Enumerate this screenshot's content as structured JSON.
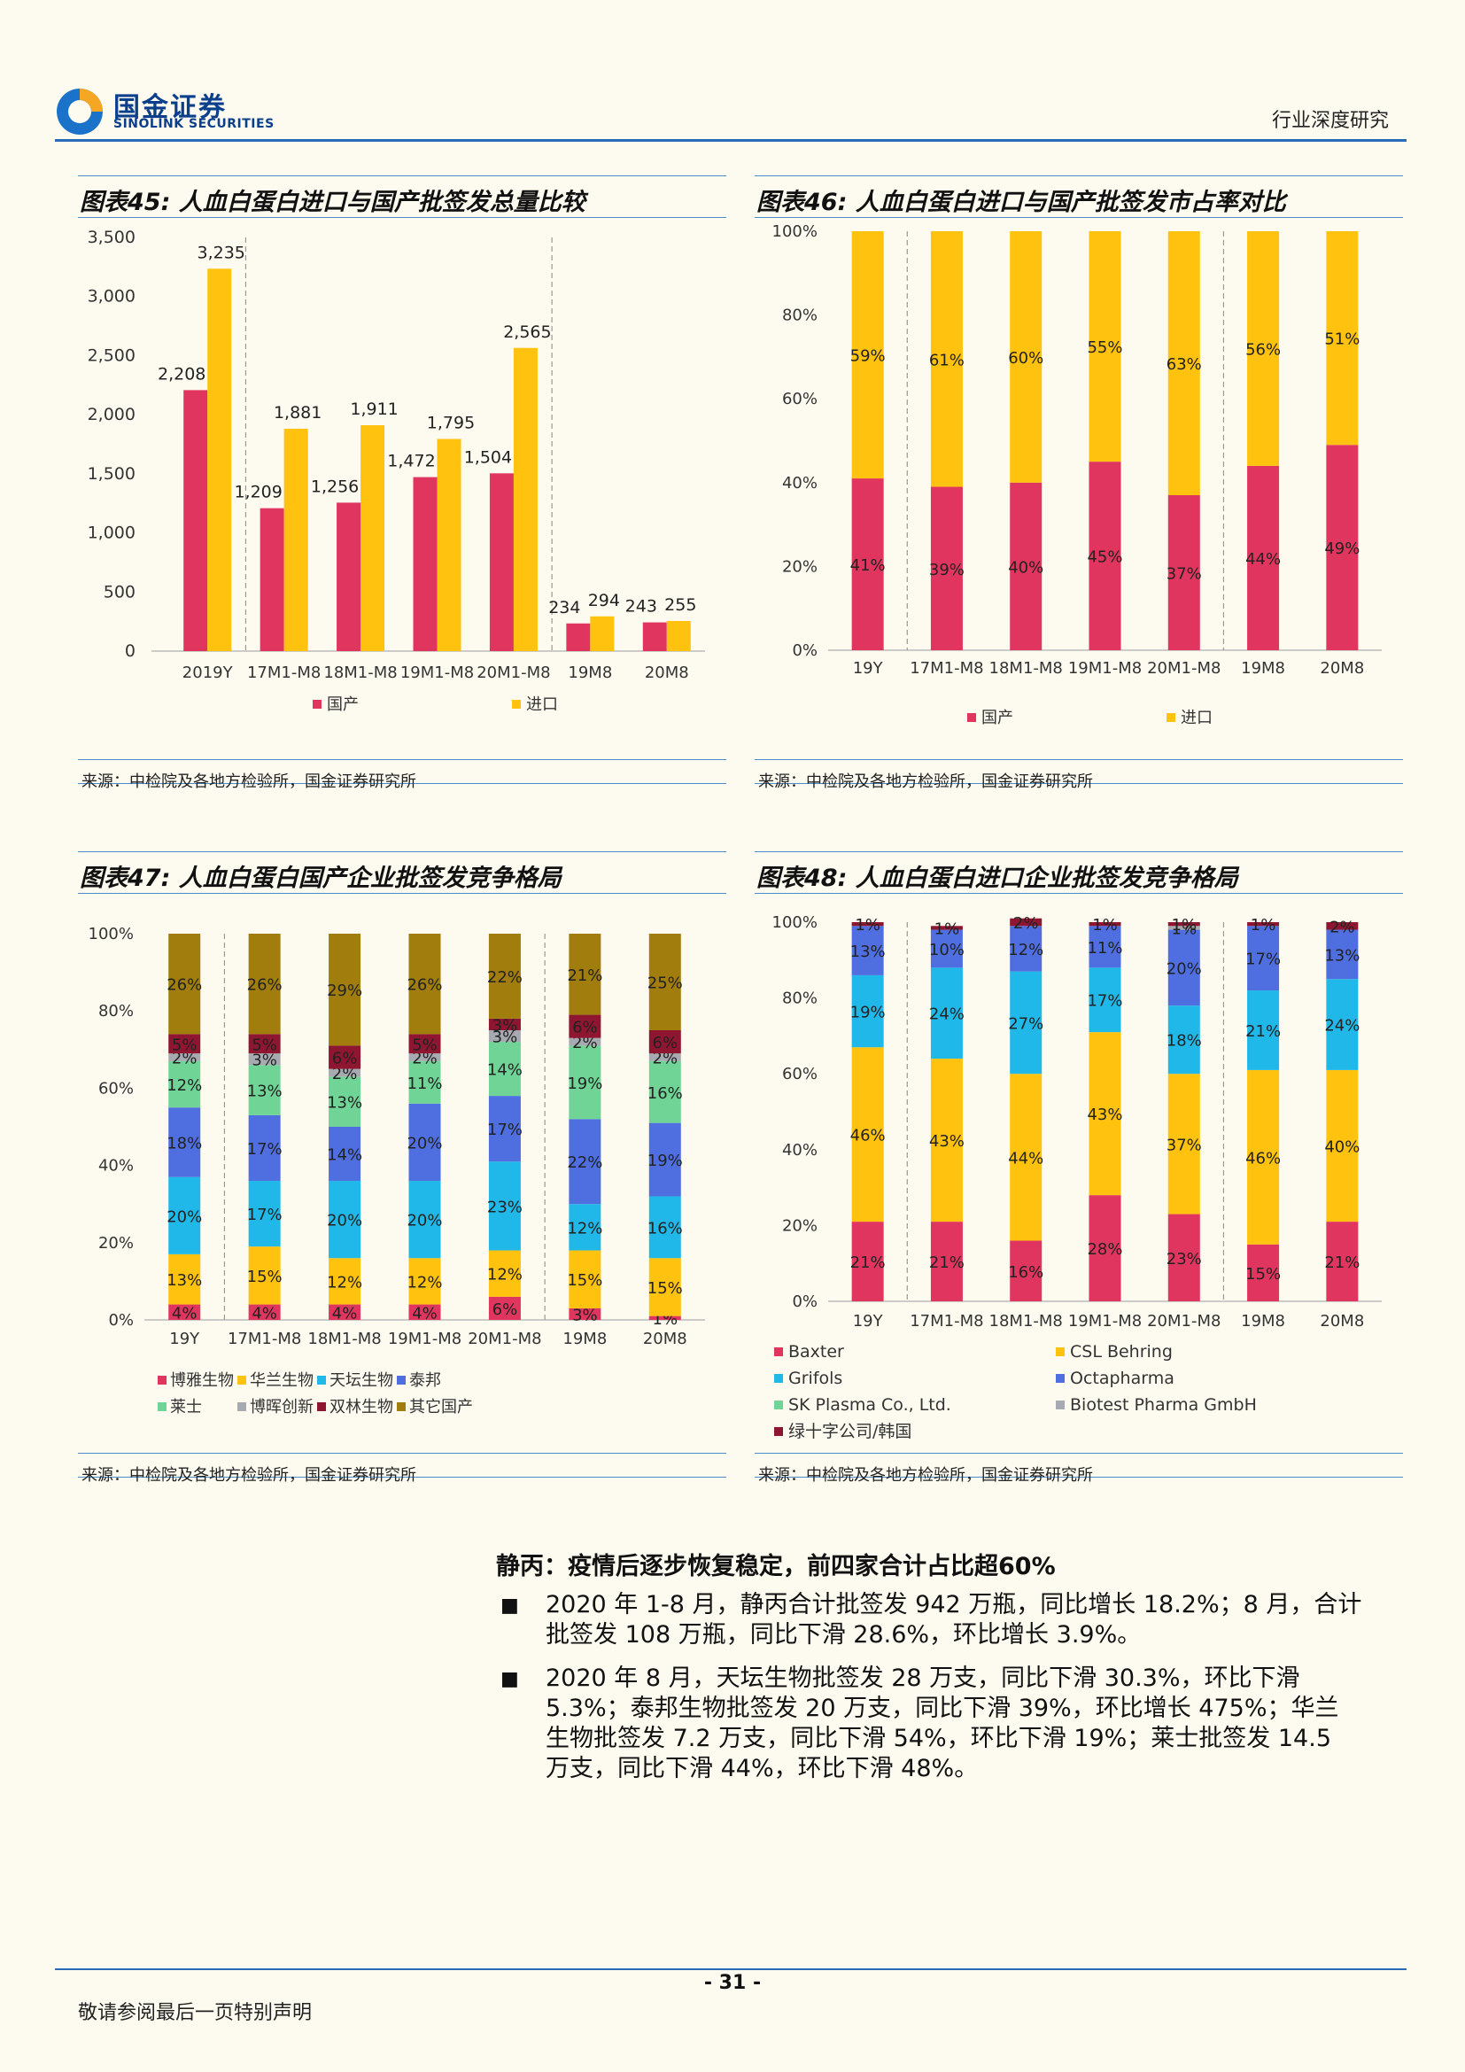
{
  "header": {
    "logo_cn": "国金证券",
    "logo_en": "SINOLINK SECURITIES",
    "doc_type": "行业深度研究"
  },
  "charts": {
    "c45": {
      "title": "图表45: 人血白蛋白进口与国产批签发总量比较",
      "source": "来源：中检院及各地方检验所，国金证券研究所"
    },
    "c46": {
      "title": "图表46: 人血白蛋白进口与国产批签发市占率对比",
      "source": "来源：中检院及各地方检验所，国金证券研究所"
    },
    "c47": {
      "title": "图表47: 人血白蛋白国产企业批签发竞争格局",
      "source": "来源：中检院及各地方检验所，国金证券研究所"
    },
    "c48": {
      "title": "图表48: 人血白蛋白进口企业批签发竞争格局",
      "source": "来源：中检院及各地方检验所，国金证券研究所"
    }
  },
  "chart_data": [
    {
      "id": "c45",
      "type": "bar",
      "categories": [
        "2019Y",
        "17M1-M8",
        "18M1-M8",
        "19M1-M8",
        "20M1-M8",
        "19M8",
        "20M8"
      ],
      "series": [
        {
          "name": "国产",
          "color": "#e0355e",
          "values": [
            2208,
            1209,
            1256,
            1472,
            1504,
            234,
            243
          ],
          "labels": [
            "2,208",
            "1,209",
            "1,256",
            "1,472",
            "1,504",
            "234",
            "243"
          ]
        },
        {
          "name": "进口",
          "color": "#ffc20e",
          "values": [
            3235,
            1881,
            1911,
            1795,
            2565,
            294,
            255
          ],
          "labels": [
            "3,235",
            "1,881",
            "1,911",
            "1,795",
            "2,565",
            "294",
            "255"
          ]
        }
      ],
      "ylim": [
        0,
        3500
      ],
      "yticks": [
        "0",
        "500",
        "1,000",
        "1,500",
        "2,000",
        "2,500",
        "3,000",
        "3,500"
      ],
      "legend_position": "bottom"
    },
    {
      "id": "c46",
      "type": "bar",
      "stacked": true,
      "categories": [
        "19Y",
        "17M1-M8",
        "18M1-M8",
        "19M1-M8",
        "20M1-M8",
        "19M8",
        "20M8"
      ],
      "series": [
        {
          "name": "国产",
          "color": "#e0355e",
          "values": [
            41,
            39,
            40,
            45,
            37,
            44,
            49
          ]
        },
        {
          "name": "进口",
          "color": "#ffc20e",
          "values": [
            59,
            61,
            60,
            55,
            63,
            56,
            51
          ]
        }
      ],
      "ylim": [
        0,
        100
      ],
      "yticks": [
        "0%",
        "20%",
        "40%",
        "60%",
        "80%",
        "100%"
      ],
      "legend_position": "bottom"
    },
    {
      "id": "c47",
      "type": "bar",
      "stacked": true,
      "categories": [
        "19Y",
        "17M1-M8",
        "18M1-M8",
        "19M1-M8",
        "20M1-M8",
        "19M8",
        "20M8"
      ],
      "series": [
        {
          "name": "博雅生物",
          "color": "#e0355e",
          "values": [
            4,
            4,
            4,
            4,
            6,
            3,
            1
          ]
        },
        {
          "name": "华兰生物",
          "color": "#ffc20e",
          "values": [
            13,
            15,
            12,
            12,
            12,
            15,
            15
          ]
        },
        {
          "name": "天坛生物",
          "color": "#1fb8e8",
          "values": [
            20,
            17,
            20,
            20,
            23,
            12,
            16
          ]
        },
        {
          "name": "泰邦",
          "color": "#4f6fe0",
          "values": [
            18,
            17,
            14,
            20,
            17,
            22,
            19
          ]
        },
        {
          "name": "莱士",
          "color": "#6fd496",
          "values": [
            12,
            13,
            13,
            11,
            14,
            19,
            16
          ]
        },
        {
          "name": "博晖创新",
          "color": "#a7aab0",
          "values": [
            2,
            3,
            2,
            2,
            3,
            2,
            2
          ]
        },
        {
          "name": "双林生物",
          "color": "#8e1630",
          "values": [
            5,
            5,
            6,
            5,
            3,
            6,
            6
          ]
        },
        {
          "name": "其它国产",
          "color": "#a07d0c",
          "values": [
            26,
            26,
            29,
            26,
            22,
            21,
            25
          ]
        }
      ],
      "ylim": [
        0,
        100
      ],
      "yticks": [
        "0%",
        "20%",
        "40%",
        "60%",
        "80%",
        "100%"
      ],
      "legend_position": "bottom"
    },
    {
      "id": "c48",
      "type": "bar",
      "stacked": true,
      "categories": [
        "19Y",
        "17M1-M8",
        "18M1-M8",
        "19M1-M8",
        "20M1-M8",
        "19M8",
        "20M8"
      ],
      "series": [
        {
          "name": "Baxter",
          "color": "#e0355e",
          "values": [
            21,
            21,
            16,
            28,
            23,
            15,
            21
          ]
        },
        {
          "name": "CSL Behring",
          "color": "#ffc20e",
          "values": [
            46,
            43,
            44,
            43,
            37,
            46,
            40
          ]
        },
        {
          "name": "Grifols",
          "color": "#1fb8e8",
          "values": [
            19,
            24,
            27,
            17,
            18,
            21,
            24
          ]
        },
        {
          "name": "Octapharma",
          "color": "#4f6fe0",
          "values": [
            13,
            10,
            12,
            11,
            20,
            17,
            13
          ]
        },
        {
          "name": "SK Plasma Co., Ltd.",
          "color": "#6fd496",
          "values": [
            0,
            0,
            0,
            0,
            0,
            0,
            0
          ]
        },
        {
          "name": "Biotest Pharma GmbH",
          "color": "#a7aab0",
          "values": [
            0,
            0,
            0,
            0,
            1,
            0,
            0
          ]
        },
        {
          "name": "绿十字公司/韩国",
          "color": "#8e1630",
          "values": [
            1,
            1,
            2,
            1,
            1,
            1,
            2
          ]
        }
      ],
      "ylim": [
        0,
        100
      ],
      "yticks": [
        "0%",
        "20%",
        "40%",
        "60%",
        "80%",
        "100%"
      ],
      "legend_position": "bottom"
    }
  ],
  "body": {
    "heading": "静丙：疫情后逐步恢复稳定，前四家合计占比超60%",
    "bullet_char": "■",
    "para1_line1": "2020 年 1-8 月，静丙合计批签发 942 万瓶，同比增长 18.2%；8 月，合计",
    "para1_line2": "批签发 108 万瓶，同比下滑 28.6%，环比增长 3.9%。",
    "para2_line1": "2020 年 8 月，天坛生物批签发 28 万支，同比下滑 30.3%，环比下滑",
    "para2_line2": "5.3%；泰邦生物批签发 20 万支，同比下滑 39%，环比增长 475%；华兰",
    "para2_line3": "生物批签发 7.2 万支，同比下滑 54%，环比下滑 19%；莱士批签发 14.5",
    "para2_line4": "万支，同比下滑 44%，环比下滑 48%。"
  },
  "footer": {
    "page_number": "- 31 -",
    "disclaimer": "敬请参阅最后一页特别声明"
  }
}
